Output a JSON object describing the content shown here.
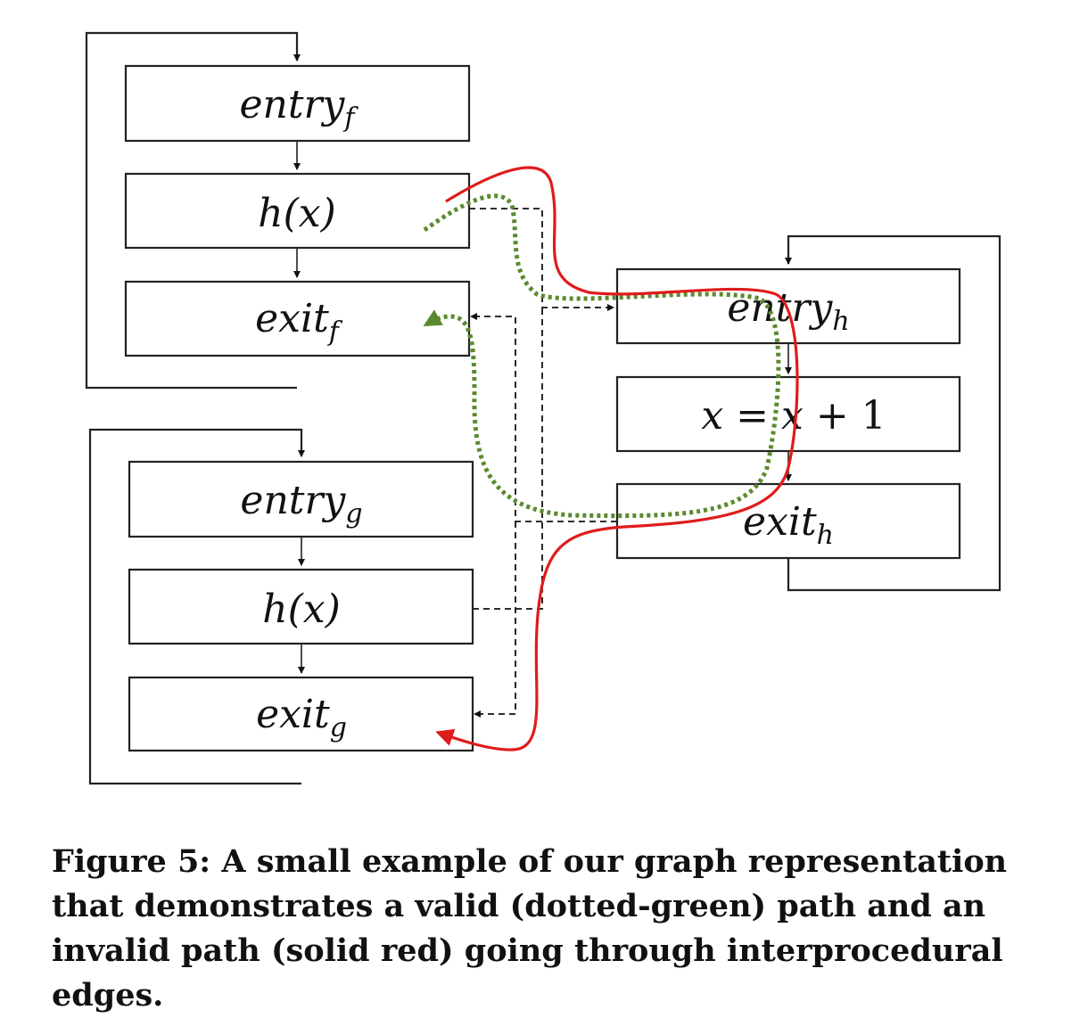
{
  "nodes": {
    "entry_f": {
      "base": "entry",
      "sub": "f"
    },
    "call_f": {
      "label": "h(x)"
    },
    "exit_f": {
      "base": "exit",
      "sub": "f"
    },
    "entry_g": {
      "base": "entry",
      "sub": "g"
    },
    "call_g": {
      "label": "h(x)"
    },
    "exit_g": {
      "base": "exit",
      "sub": "g"
    },
    "entry_h": {
      "base": "entry",
      "sub": "h"
    },
    "assign_h": {
      "lhs": "x",
      "op1": " = ",
      "rhs": "x",
      "op2": " + 1"
    },
    "exit_h": {
      "base": "exit",
      "sub": "h"
    }
  },
  "paths": {
    "valid": {
      "color": "#5b8a2e"
    },
    "invalid": {
      "color": "#e01b1b"
    }
  },
  "caption": "Figure 5: A small example of our graph representation that demonstrates a valid (dotted-green) path and an invalid path (solid red) going through interprocedural edges."
}
